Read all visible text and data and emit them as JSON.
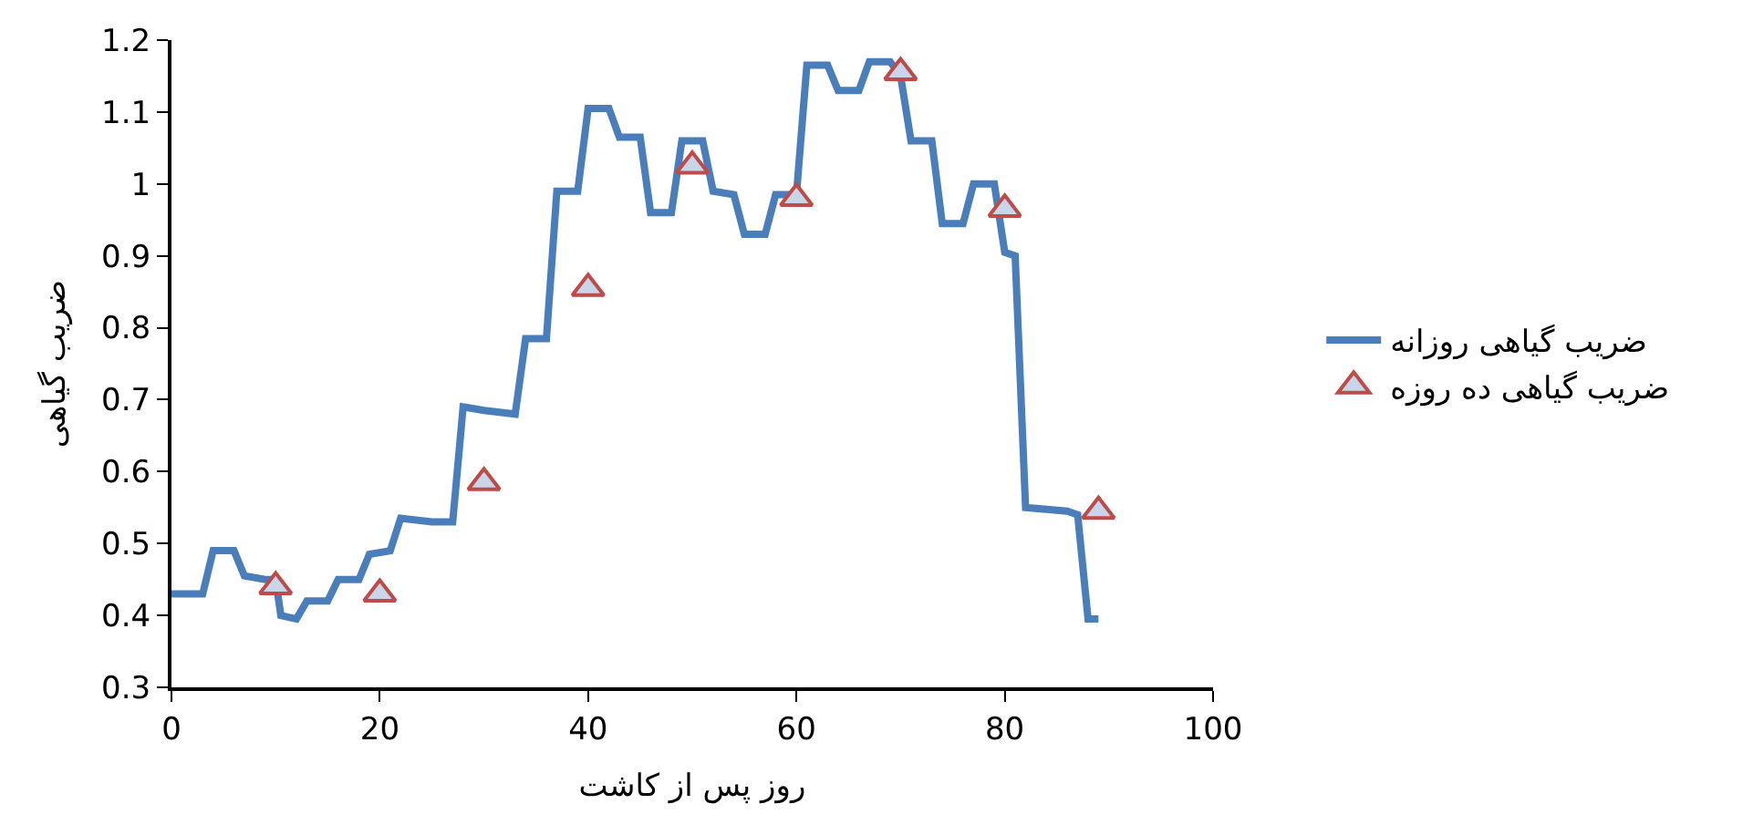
{
  "chart_data": {
    "type": "line",
    "xlabel": "روز پس از کاشت",
    "ylabel": "ضریب گیاهی",
    "xlim": [
      0,
      100
    ],
    "xticks": [
      0,
      20,
      40,
      60,
      80,
      100
    ],
    "ylim": [
      0.3,
      1.2
    ],
    "yticks": [
      0.3,
      0.4,
      0.5,
      0.6,
      0.7,
      0.8,
      0.9,
      1,
      1.1,
      1.2
    ],
    "legend": "right",
    "series": [
      {
        "name": "ضریب گیاهی روزانه",
        "color": "#4a7ebb",
        "marker": "none",
        "line_style": "solid",
        "x": [
          0,
          1,
          3,
          4,
          6,
          7,
          9,
          10,
          10.5,
          12,
          13,
          15,
          16,
          18,
          19,
          21,
          22,
          25,
          27,
          28,
          30,
          33,
          34,
          36,
          37,
          39,
          40,
          42,
          43,
          45,
          46,
          48,
          49,
          51,
          52,
          54,
          55,
          57,
          58,
          60,
          61,
          63,
          64,
          66,
          67,
          69,
          70,
          71,
          73,
          74,
          76,
          77,
          79,
          80,
          81,
          82,
          86,
          87,
          88,
          89
        ],
        "values": [
          0.43,
          0.43,
          0.43,
          0.49,
          0.49,
          0.455,
          0.45,
          0.45,
          0.4,
          0.395,
          0.42,
          0.42,
          0.45,
          0.45,
          0.485,
          0.49,
          0.535,
          0.53,
          0.53,
          0.69,
          0.685,
          0.68,
          0.785,
          0.785,
          0.99,
          0.99,
          1.105,
          1.105,
          1.065,
          1.065,
          0.96,
          0.96,
          1.06,
          1.06,
          0.99,
          0.985,
          0.93,
          0.93,
          0.985,
          0.985,
          1.165,
          1.165,
          1.13,
          1.13,
          1.17,
          1.17,
          1.15,
          1.06,
          1.06,
          0.945,
          0.945,
          1.0,
          1.0,
          0.905,
          0.9,
          0.55,
          0.545,
          0.54,
          0.395,
          0.395
        ]
      },
      {
        "name": "ضریب گیاهی ده روزه",
        "color": "#be4b48",
        "type": "scatter",
        "marker": "triangle",
        "x": [
          10,
          20,
          30,
          40,
          50,
          60,
          70,
          80,
          89
        ],
        "values": [
          0.44,
          0.43,
          0.585,
          0.855,
          1.025,
          0.98,
          1.155,
          0.965,
          0.545
        ]
      }
    ]
  }
}
